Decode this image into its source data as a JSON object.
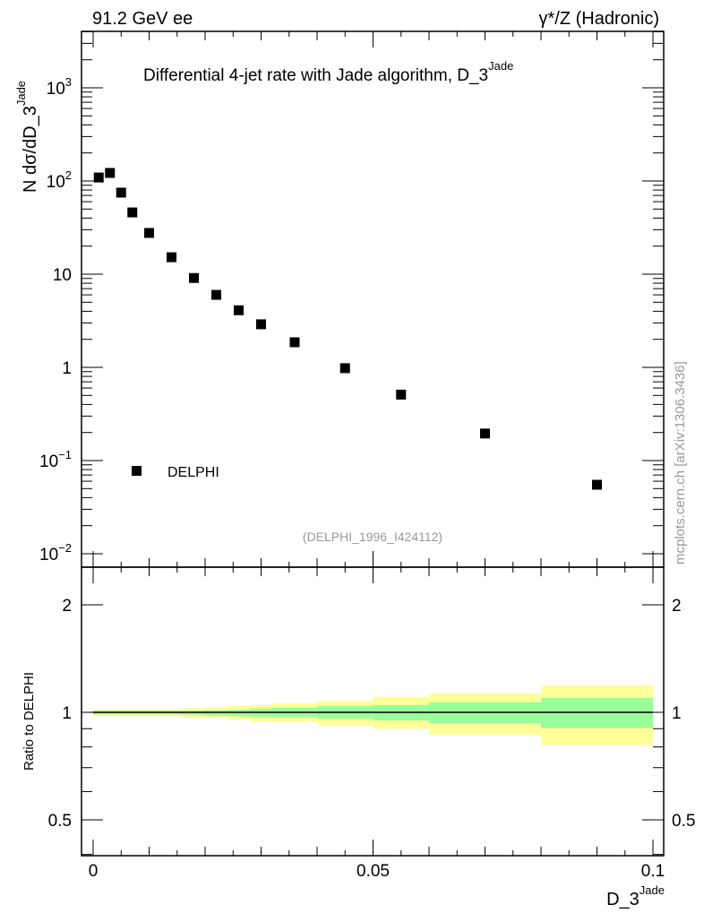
{
  "header": {
    "left": "91.2 GeV ee",
    "right": "γ*/Z (Hadronic)"
  },
  "side_label": "mcplots.cern.ch [arXiv:1306.3436]",
  "colors": {
    "marker": "#000000",
    "band_inner": "#99ff99",
    "band_outer": "#ffff99",
    "watermark": "#999999"
  },
  "chart_data": [
    {
      "type": "scatter",
      "title": "Differential 4-jet rate with Jade algorithm, D_3",
      "title_sup": "Jade",
      "ylabel": "N  dσ/dD_3",
      "ylabel_sup": "Jade",
      "yscale": "log",
      "ylim": [
        0.01,
        4000
      ],
      "xlim": [
        -0.002,
        0.102
      ],
      "yticks": [
        {
          "v": 1000,
          "base": "10",
          "exp": "3"
        },
        {
          "v": 100,
          "base": "10",
          "exp": "2"
        },
        {
          "v": 10,
          "base": "10",
          "exp": ""
        },
        {
          "v": 1,
          "base": "1",
          "exp": ""
        },
        {
          "v": 0.1,
          "base": "10",
          "exp": "−1"
        },
        {
          "v": 0.01,
          "base": "10",
          "exp": "−2"
        }
      ],
      "legend": {
        "label": "DELPHI",
        "placement": "bottom-left"
      },
      "watermark": "(DELPHI_1996_I424112)",
      "series": [
        {
          "name": "DELPHI",
          "x": [
            0.001,
            0.003,
            0.005,
            0.007,
            0.01,
            0.014,
            0.018,
            0.022,
            0.026,
            0.03,
            0.036,
            0.045,
            0.055,
            0.07,
            0.09
          ],
          "y": [
            109,
            122,
            75,
            46,
            27.7,
            15.2,
            9.1,
            6.0,
            4.1,
            2.9,
            1.86,
            0.98,
            0.51,
            0.195,
            0.055
          ]
        }
      ]
    },
    {
      "type": "area",
      "ylabel": "Ratio to DELPHI",
      "yscale": "log",
      "ylim": [
        0.397,
        2.55
      ],
      "xlabel": "D_3",
      "xlabel_sup": "Jade",
      "xticks": [
        {
          "v": 0,
          "label": "0"
        },
        {
          "v": 0.05,
          "label": "0.05"
        },
        {
          "v": 0.1,
          "label": "0.1"
        }
      ],
      "yticks": [
        {
          "v": 2,
          "label": "2"
        },
        {
          "v": 1,
          "label": "1"
        },
        {
          "v": 0.5,
          "label": "0.5"
        }
      ],
      "bin_edges": [
        0,
        0.016,
        0.02,
        0.024,
        0.028,
        0.032,
        0.04,
        0.05,
        0.06,
        0.08,
        0.1
      ],
      "inner_band": {
        "lo": [
          0.987,
          0.985,
          0.979,
          0.975,
          0.97,
          0.969,
          0.96,
          0.949,
          0.933,
          0.904
        ],
        "hi": [
          1.01,
          1.01,
          1.013,
          1.017,
          1.025,
          1.031,
          1.041,
          1.049,
          1.067,
          1.097
        ]
      },
      "outer_band": {
        "lo": [
          0.975,
          0.968,
          0.964,
          0.955,
          0.944,
          0.94,
          0.92,
          0.899,
          0.866,
          0.81
        ],
        "hi": [
          1.021,
          1.027,
          1.033,
          1.043,
          1.049,
          1.061,
          1.078,
          1.105,
          1.131,
          1.191
        ]
      },
      "reference": 1
    }
  ]
}
